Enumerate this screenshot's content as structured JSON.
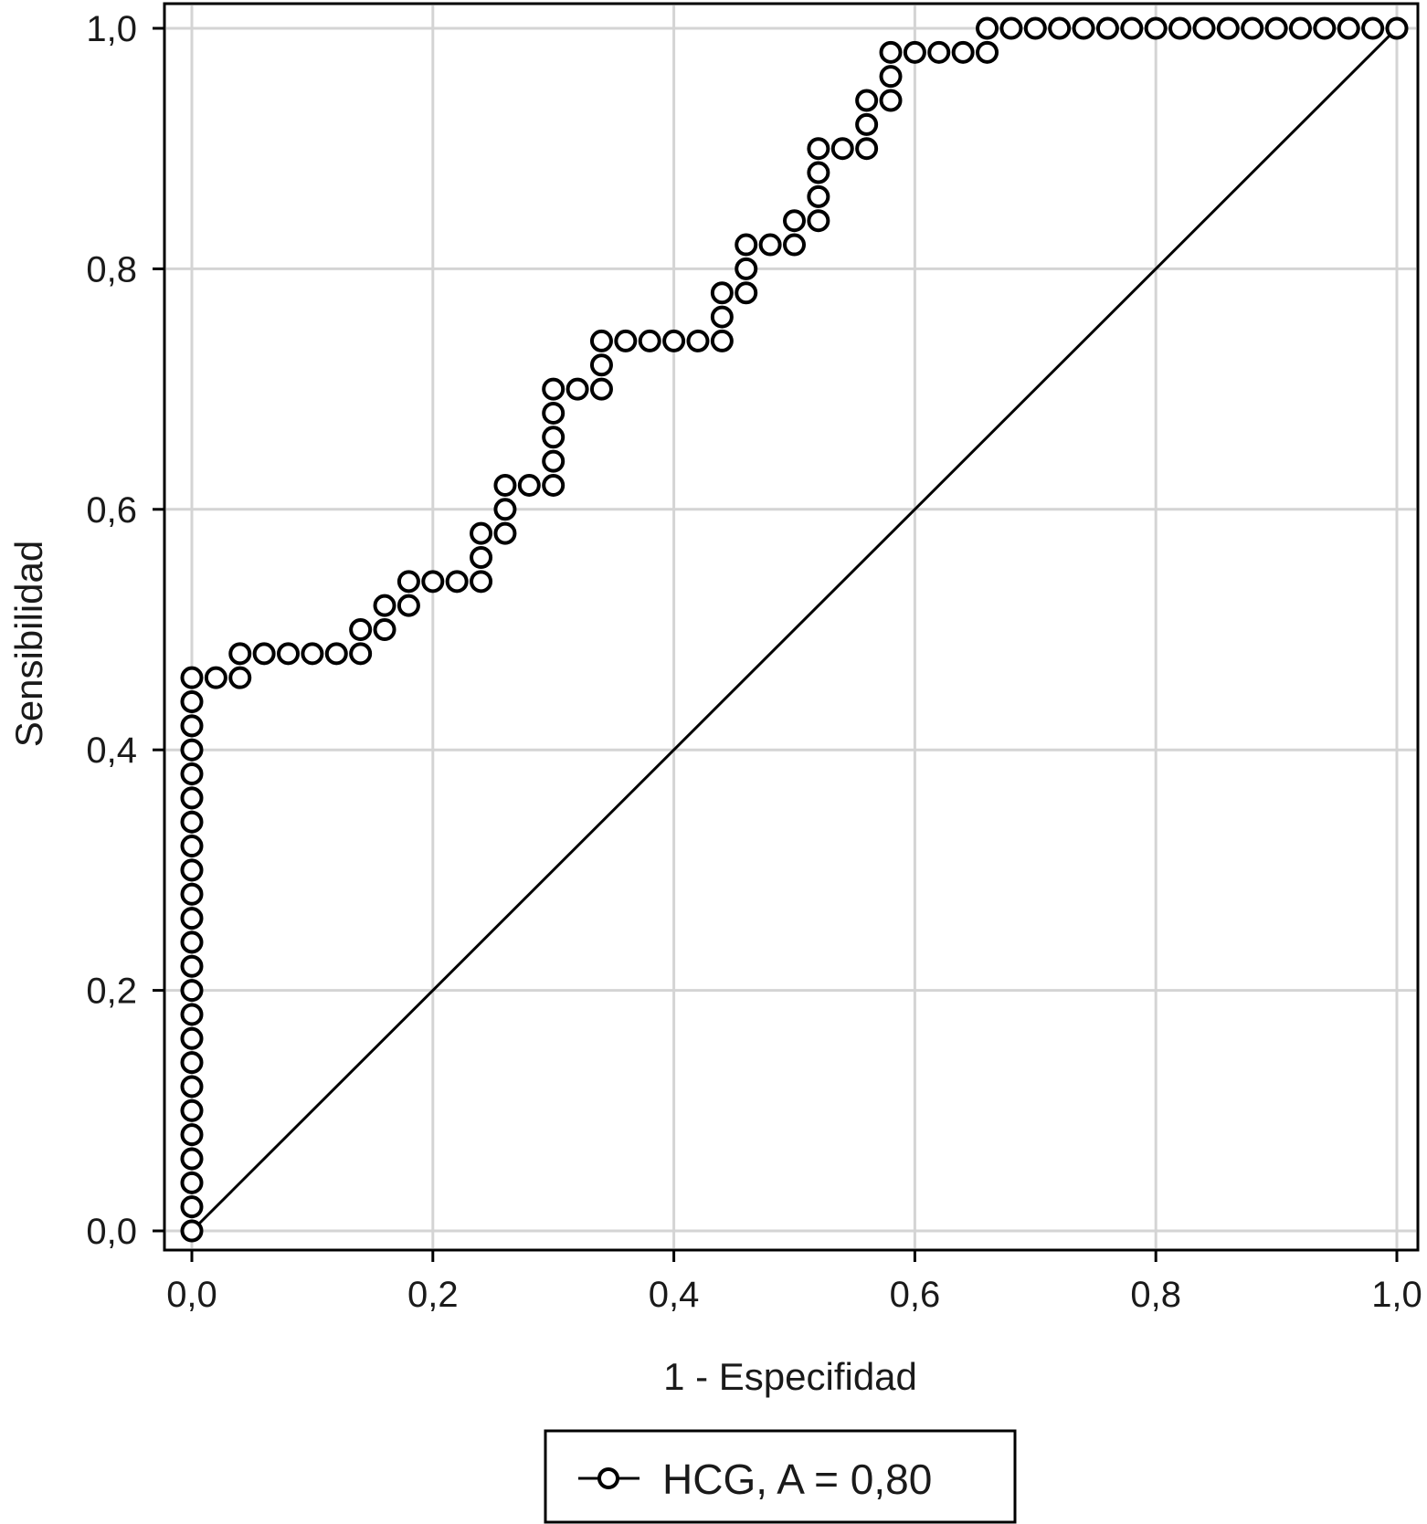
{
  "chart_data": {
    "type": "scatter",
    "title": "",
    "xlabel": "1 - Especifidad",
    "ylabel": "Sensibilidad",
    "xlim": [
      0,
      1
    ],
    "ylim": [
      0,
      1
    ],
    "xticks": [
      0,
      0.2,
      0.4,
      0.6,
      0.8,
      1.0
    ],
    "yticks": [
      0,
      0.2,
      0.4,
      0.6,
      0.8,
      1.0
    ],
    "xtick_labels": [
      "0,0",
      "0,2",
      "0,4",
      "0,6",
      "0,8",
      "1,0"
    ],
    "ytick_labels": [
      "0,0",
      "0,2",
      "0,4",
      "0,6",
      "0,8",
      "1,0"
    ],
    "grid": true,
    "legend_position": "bottom-center",
    "legend_label": "HCG, A = 0,80",
    "series": [
      {
        "name": "HCG, A = 0,80",
        "marker": "open-circle",
        "points": [
          [
            0,
            0
          ],
          [
            0,
            0.02
          ],
          [
            0,
            0.04
          ],
          [
            0,
            0.06
          ],
          [
            0,
            0.08
          ],
          [
            0,
            0.1
          ],
          [
            0,
            0.12
          ],
          [
            0,
            0.14
          ],
          [
            0,
            0.16
          ],
          [
            0,
            0.18
          ],
          [
            0,
            0.2
          ],
          [
            0,
            0.22
          ],
          [
            0,
            0.24
          ],
          [
            0,
            0.26
          ],
          [
            0,
            0.28
          ],
          [
            0,
            0.3
          ],
          [
            0,
            0.32
          ],
          [
            0,
            0.34
          ],
          [
            0,
            0.36
          ],
          [
            0,
            0.38
          ],
          [
            0,
            0.4
          ],
          [
            0,
            0.42
          ],
          [
            0,
            0.44
          ],
          [
            0,
            0.46
          ],
          [
            0.02,
            0.46
          ],
          [
            0.04,
            0.46
          ],
          [
            0.04,
            0.48
          ],
          [
            0.06,
            0.48
          ],
          [
            0.08,
            0.48
          ],
          [
            0.1,
            0.48
          ],
          [
            0.12,
            0.48
          ],
          [
            0.14,
            0.48
          ],
          [
            0.14,
            0.5
          ],
          [
            0.16,
            0.5
          ],
          [
            0.16,
            0.52
          ],
          [
            0.18,
            0.52
          ],
          [
            0.18,
            0.54
          ],
          [
            0.2,
            0.54
          ],
          [
            0.22,
            0.54
          ],
          [
            0.24,
            0.54
          ],
          [
            0.24,
            0.56
          ],
          [
            0.24,
            0.58
          ],
          [
            0.26,
            0.58
          ],
          [
            0.26,
            0.6
          ],
          [
            0.26,
            0.62
          ],
          [
            0.28,
            0.62
          ],
          [
            0.3,
            0.62
          ],
          [
            0.3,
            0.64
          ],
          [
            0.3,
            0.66
          ],
          [
            0.3,
            0.68
          ],
          [
            0.3,
            0.7
          ],
          [
            0.32,
            0.7
          ],
          [
            0.34,
            0.7
          ],
          [
            0.34,
            0.72
          ],
          [
            0.34,
            0.74
          ],
          [
            0.36,
            0.74
          ],
          [
            0.38,
            0.74
          ],
          [
            0.4,
            0.74
          ],
          [
            0.42,
            0.74
          ],
          [
            0.44,
            0.74
          ],
          [
            0.44,
            0.76
          ],
          [
            0.44,
            0.78
          ],
          [
            0.46,
            0.78
          ],
          [
            0.46,
            0.8
          ],
          [
            0.46,
            0.82
          ],
          [
            0.48,
            0.82
          ],
          [
            0.5,
            0.82
          ],
          [
            0.5,
            0.84
          ],
          [
            0.52,
            0.84
          ],
          [
            0.52,
            0.86
          ],
          [
            0.52,
            0.88
          ],
          [
            0.52,
            0.9
          ],
          [
            0.54,
            0.9
          ],
          [
            0.56,
            0.9
          ],
          [
            0.56,
            0.92
          ],
          [
            0.56,
            0.94
          ],
          [
            0.58,
            0.94
          ],
          [
            0.58,
            0.96
          ],
          [
            0.58,
            0.98
          ],
          [
            0.6,
            0.98
          ],
          [
            0.62,
            0.98
          ],
          [
            0.64,
            0.98
          ],
          [
            0.66,
            0.98
          ],
          [
            0.66,
            1.0
          ],
          [
            0.68,
            1.0
          ],
          [
            0.7,
            1.0
          ],
          [
            0.72,
            1.0
          ],
          [
            0.74,
            1.0
          ],
          [
            0.76,
            1.0
          ],
          [
            0.78,
            1.0
          ],
          [
            0.8,
            1.0
          ],
          [
            0.82,
            1.0
          ],
          [
            0.84,
            1.0
          ],
          [
            0.86,
            1.0
          ],
          [
            0.88,
            1.0
          ],
          [
            0.9,
            1.0
          ],
          [
            0.92,
            1.0
          ],
          [
            0.94,
            1.0
          ],
          [
            0.96,
            1.0
          ],
          [
            0.98,
            1.0
          ],
          [
            1.0,
            1.0
          ]
        ]
      },
      {
        "type": "line",
        "points": [
          [
            0,
            0
          ],
          [
            1,
            1
          ]
        ]
      }
    ]
  }
}
